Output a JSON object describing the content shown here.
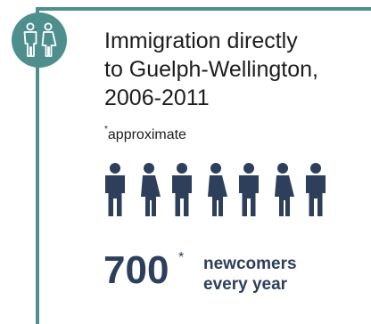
{
  "title_lines": [
    "Immigration directly",
    "to Guelph-Wellington,",
    "2006-2011"
  ],
  "note": {
    "star": "*",
    "text": "approximate"
  },
  "people_icons": [
    "man-icon",
    "woman-icon",
    "man-icon",
    "woman-icon",
    "man-icon",
    "woman-icon",
    "man-icon"
  ],
  "stat": {
    "value": "700",
    "star": "*",
    "caption_lines": [
      "newcomers",
      "every year"
    ]
  },
  "colors": {
    "accent": "#4e8f8e",
    "figure": "#2e3f5b",
    "text": "#1d1d1f"
  },
  "badge_icon": "man-and-woman-icon"
}
